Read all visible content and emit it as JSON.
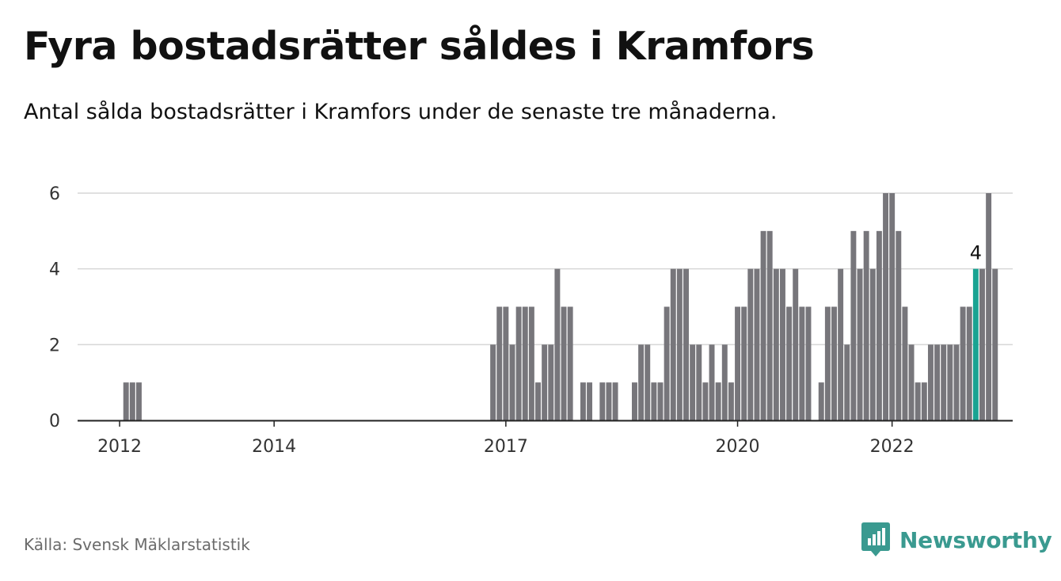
{
  "header": {
    "title": "Fyra bostadsrätter såldes i Kramfors",
    "subtitle": "Antal sålda bostadsrätter i Kramfors under de senaste tre månaderna."
  },
  "footer": {
    "source": "Källa: Svensk Mäklarstatistik",
    "brand": "Newsworthy",
    "brand_icon": "newsworthy-logo-icon"
  },
  "colors": {
    "bar": "#77767b",
    "highlight": "#1aa392",
    "brand": "#3a9a90",
    "grid": "#d6d6d6",
    "text": "#333333"
  },
  "chart_data": {
    "type": "bar",
    "title": "Fyra bostadsrätter såldes i Kramfors",
    "subtitle": "Antal sålda bostadsrätter i Kramfors under de senaste tre månaderna.",
    "xlabel": "",
    "ylabel": "",
    "ylim": [
      0,
      6
    ],
    "yticks": [
      0,
      2,
      4,
      6
    ],
    "grid": true,
    "legend": "none",
    "x_ticks": [
      {
        "label": "2012",
        "index": 0
      },
      {
        "label": "2014",
        "index": 24
      },
      {
        "label": "2017",
        "index": 60
      },
      {
        "label": "2020",
        "index": 96
      },
      {
        "label": "2022",
        "index": 120
      }
    ],
    "periods_start": "2012-01",
    "values": [
      0,
      1,
      1,
      1,
      0,
      0,
      0,
      0,
      0,
      0,
      0,
      0,
      0,
      0,
      0,
      0,
      0,
      0,
      0,
      0,
      0,
      0,
      0,
      0,
      0,
      0,
      0,
      0,
      0,
      0,
      0,
      0,
      0,
      0,
      0,
      0,
      0,
      0,
      0,
      0,
      0,
      0,
      0,
      0,
      0,
      0,
      0,
      0,
      0,
      0,
      0,
      0,
      0,
      0,
      0,
      0,
      0,
      0,
      2,
      3,
      3,
      2,
      3,
      3,
      3,
      1,
      2,
      2,
      4,
      3,
      3,
      0,
      1,
      1,
      0,
      1,
      1,
      1,
      0,
      0,
      1,
      2,
      2,
      1,
      1,
      3,
      4,
      4,
      4,
      2,
      2,
      1,
      2,
      1,
      2,
      1,
      3,
      3,
      4,
      4,
      5,
      5,
      4,
      4,
      3,
      4,
      3,
      3,
      0,
      1,
      3,
      3,
      4,
      2,
      5,
      4,
      5,
      4,
      5,
      6,
      6,
      5,
      3,
      2,
      1,
      1,
      2,
      2,
      2,
      2,
      2,
      3,
      3,
      4,
      4,
      6,
      4
    ],
    "highlight_index": 133,
    "highlight_label": "4"
  }
}
